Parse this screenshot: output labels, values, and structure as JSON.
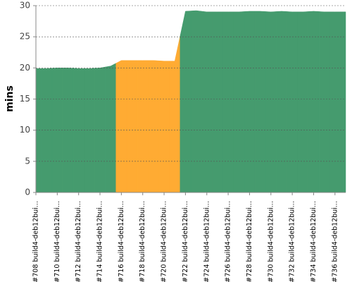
{
  "chart_data": {
    "type": "area",
    "y_label": "mins",
    "categories": [
      "#708 build4-deb12bui...",
      null,
      "#710 build4-deb12bui...",
      null,
      "#712 build4-deb12bui...",
      null,
      "#714 build4-deb12bui...",
      null,
      "#716 build4-deb12bui...",
      null,
      "#718 build4-deb12bui...",
      null,
      "#720 build4-deb12bui...",
      null,
      "#722 build4-deb12bui...",
      null,
      "#724 build4-deb12bui...",
      null,
      "#726 build4-deb12bui...",
      null,
      "#728 build4-deb12bui...",
      null,
      "#730 build4-deb12bui...",
      null,
      "#732 build4-deb12bui...",
      null,
      "#734 build4-deb12bui...",
      null,
      "#736 build4-deb12bui...",
      null
    ],
    "values": [
      19.9,
      19.9,
      20.0,
      20.0,
      19.9,
      19.9,
      20.0,
      20.3,
      21.2,
      21.2,
      21.2,
      21.2,
      21.1,
      21.1,
      29.1,
      29.2,
      29.0,
      29.0,
      29.0,
      29.0,
      29.1,
      29.1,
      29.0,
      29.1,
      29.0,
      29.0,
      29.1,
      29.0,
      29.0,
      29.0
    ],
    "point_colors": [
      "#459b6e",
      "#459b6e",
      "#459b6e",
      "#459b6e",
      "#459b6e",
      "#459b6e",
      "#459b6e",
      "#459b6e",
      "#ffab33",
      "#ffab33",
      "#ffab33",
      "#ffab33",
      "#ffab33",
      "#ffab33",
      "#459b6e",
      "#459b6e",
      "#459b6e",
      "#459b6e",
      "#459b6e",
      "#459b6e",
      "#459b6e",
      "#459b6e",
      "#459b6e",
      "#459b6e",
      "#459b6e",
      "#459b6e",
      "#459b6e",
      "#459b6e",
      "#459b6e",
      "#459b6e"
    ],
    "ylim": [
      0,
      30
    ],
    "yticks": [
      0,
      5,
      10,
      15,
      20,
      25,
      30
    ],
    "grid": true
  }
}
